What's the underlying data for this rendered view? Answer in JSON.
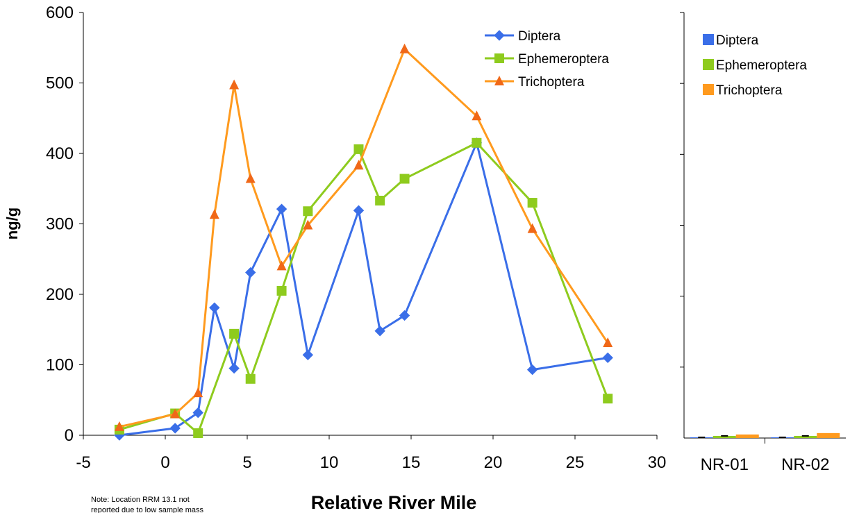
{
  "chart_data": [
    {
      "type": "line",
      "xlabel": "Relative River Mile",
      "ylabel": "ng/g",
      "xlim": [
        -5,
        30
      ],
      "ylim": [
        0,
        600
      ],
      "xticks": [
        "-5",
        "0",
        "5",
        "10",
        "15",
        "20",
        "25",
        "30"
      ],
      "yticks": [
        "0",
        "100",
        "200",
        "300",
        "400",
        "500",
        "600"
      ],
      "grid": false,
      "legend_position": "top-right",
      "note_lines": [
        "Note:  Location RRM 13.1 not",
        "reported due to low sample mass"
      ],
      "series": [
        {
          "name": "Diptera",
          "color": "#3a6ee8",
          "marker": "diamond",
          "x": [
            -2.8,
            0.6,
            2.0,
            3.0,
            4.2,
            5.2,
            7.1,
            8.7,
            11.8,
            13.1,
            14.6,
            19.0,
            22.4,
            27.0
          ],
          "y": [
            0,
            10,
            32,
            181,
            95,
            231,
            321,
            114,
            319,
            148,
            170,
            415,
            93,
            110
          ]
        },
        {
          "name": "Ephemeroptera",
          "color": "#8ecb1e",
          "marker": "square",
          "x": [
            -2.8,
            0.6,
            2.0,
            4.2,
            5.2,
            7.1,
            8.7,
            11.8,
            13.1,
            14.6,
            19.0,
            22.4,
            27.0
          ],
          "y": [
            8,
            31,
            3,
            144,
            80,
            205,
            318,
            406,
            333,
            364,
            415,
            330,
            52
          ]
        },
        {
          "name": "Trichoptera",
          "color": "#ff9a1e",
          "line_color": "#ff9a1e",
          "marker_color": "#f06818",
          "marker": "triangle",
          "x": [
            -2.8,
            0.6,
            2.0,
            3.0,
            4.2,
            5.2,
            7.1,
            8.7,
            11.8,
            14.6,
            19.0,
            22.4,
            27.0
          ],
          "y": [
            12,
            30,
            60,
            313,
            497,
            364,
            240,
            298,
            383,
            548,
            453,
            293,
            131
          ]
        }
      ]
    },
    {
      "type": "bar",
      "categories": [
        "NR-01",
        "NR-02"
      ],
      "ylim": [
        0,
        600
      ],
      "legend_position": "top-left",
      "series": [
        {
          "name": "Diptera",
          "color": "#3a6ee8",
          "values": [
            1,
            1
          ]
        },
        {
          "name": "Ephemeroptera",
          "color": "#8ecb1e",
          "values": [
            3,
            3
          ]
        },
        {
          "name": "Trichoptera",
          "color": "#ff9a1e",
          "values": [
            5,
            7
          ]
        }
      ]
    }
  ]
}
